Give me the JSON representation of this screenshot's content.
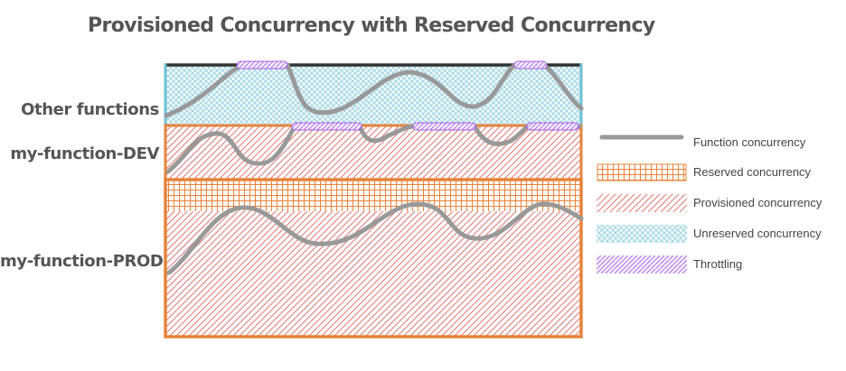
{
  "title": "Provisioned Concurrency with Reserved Concurrency",
  "rows": [
    {
      "label": "Other functions"
    },
    {
      "label": "my-function-DEV"
    },
    {
      "label": "my-function-PROD"
    }
  ],
  "legend": [
    {
      "label": "Function concurrency",
      "icon": "gray-line-icon"
    },
    {
      "label": "Reserved concurrency",
      "icon": "orange-grid-icon"
    },
    {
      "label": "Provisioned concurrency",
      "icon": "red-diagonal-hatch-icon"
    },
    {
      "label": "Unreserved concurrency",
      "icon": "blue-crosshatch-icon"
    },
    {
      "label": "Throttling",
      "icon": "purple-hatch-icon"
    }
  ],
  "colors": {
    "reserved": "#e8833a",
    "provisioned": "#e0665f",
    "unreserved": "#6fc0d4",
    "throttling": "#a35be8",
    "function_line": "#999999",
    "frame_top": "#333333"
  }
}
